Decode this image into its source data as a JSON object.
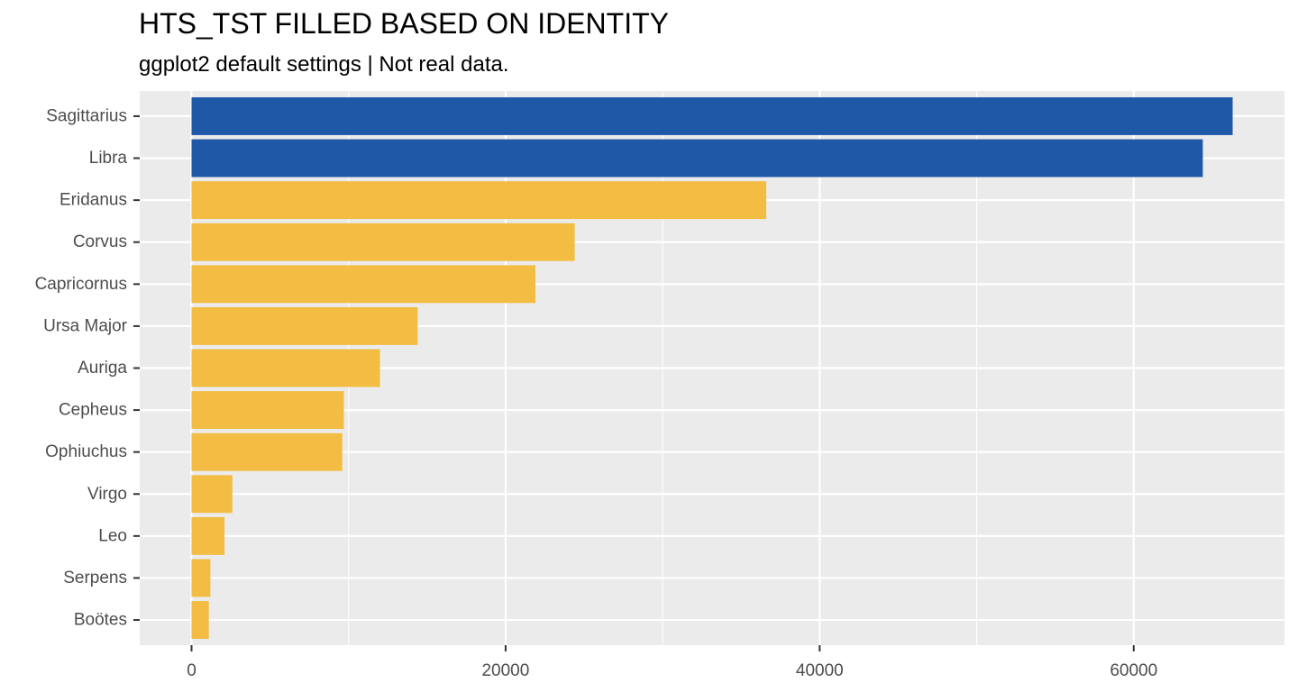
{
  "chart_data": {
    "type": "bar",
    "orientation": "horizontal",
    "title": "HTS_TST FILLED BASED ON IDENTITY",
    "subtitle": "ggplot2 default settings | Not real data.",
    "xlabel": "",
    "ylabel": "",
    "categories": [
      "Sagittarius",
      "Libra",
      "Eridanus",
      "Corvus",
      "Capricornus",
      "Ursa Major",
      "Auriga",
      "Cepheus",
      "Ophiuchus",
      "Virgo",
      "Leo",
      "Serpens",
      "Boötes"
    ],
    "values": [
      66300,
      64400,
      36600,
      24400,
      21900,
      14400,
      12000,
      9700,
      9600,
      2600,
      2100,
      1200,
      1100
    ],
    "highlighted": [
      true,
      true,
      false,
      false,
      false,
      false,
      false,
      false,
      false,
      false,
      false,
      false,
      false
    ],
    "xlim": [
      -3300,
      69600
    ],
    "xticks": [
      0,
      20000,
      40000,
      60000
    ],
    "xtick_labels": [
      "0",
      "20000",
      "40000",
      "60000"
    ],
    "grid": true,
    "legend": "none",
    "colors": {
      "highlight": "#2058A8",
      "default": "#F2BD42",
      "panel": "#EBEBEB",
      "grid": "#FFFFFF"
    }
  }
}
